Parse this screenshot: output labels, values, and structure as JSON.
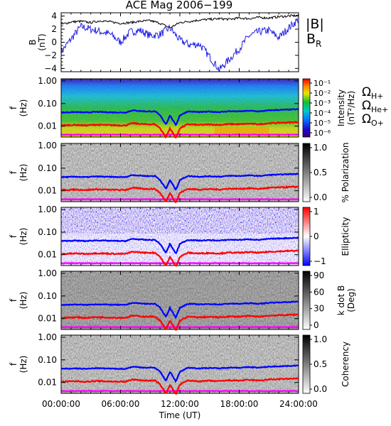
{
  "title": "ACE Mag 2006−199",
  "time_axis": {
    "label": "Time (UT)",
    "ticks": [
      "00:00:00",
      "06:00:00",
      "12:00:00",
      "18:00:00",
      "24:00:00"
    ],
    "range_hours": [
      0,
      24
    ]
  },
  "colors": {
    "B_total": "#000000",
    "B_R": "#1e1ee6",
    "omega_h": "#0000ff",
    "omega_he": "#ff0000",
    "omega_o": "#ff00ff"
  },
  "chart_data": [
    {
      "type": "line",
      "panel": "magnetic-field",
      "ylabel_line1": "B",
      "ylabel_line2": "(nT)",
      "ylim": [
        -4.5,
        4.5
      ],
      "yticks": [
        "4",
        "2",
        "0",
        "−2",
        "−4"
      ],
      "ytick_values": [
        4,
        2,
        0,
        -2,
        -4
      ],
      "x": [
        0,
        1,
        2,
        3,
        4,
        5,
        6,
        7,
        8,
        9,
        10,
        11,
        12,
        13,
        14,
        15,
        16,
        17,
        18,
        19,
        20,
        21,
        22,
        23,
        24
      ],
      "series": [
        {
          "name": "|B|",
          "values": [
            2.7,
            3.1,
            3.2,
            3.0,
            3.3,
            3.1,
            2.9,
            3.0,
            3.2,
            3.3,
            2.9,
            2.2,
            3.0,
            3.2,
            3.4,
            3.5,
            3.6,
            3.5,
            3.7,
            3.6,
            3.8,
            3.7,
            3.9,
            4.0,
            4.1
          ]
        },
        {
          "name": "B_R",
          "values": [
            -1.5,
            0.5,
            2.4,
            2.0,
            1.6,
            1.2,
            0.0,
            1.6,
            1.8,
            1.0,
            1.2,
            2.2,
            0.3,
            -0.4,
            -0.3,
            -2.2,
            -4.2,
            -2.6,
            -1.0,
            1.0,
            1.6,
            1.8,
            0.7,
            2.2,
            3.5
          ]
        }
      ],
      "legend": [
        "|B|",
        "B",
        "R"
      ]
    },
    {
      "type": "heatmap",
      "panel": "intensity",
      "ylabel_line1": "f",
      "ylabel_line2": "(Hz)",
      "yticks": [
        "1.00",
        "0.10",
        "0.01"
      ],
      "colorbar": {
        "ticks": [
          "10⁻¹",
          "10⁻²",
          "10⁻³",
          "10⁻⁴",
          "10⁻⁵",
          "10⁻⁶"
        ],
        "label_line1": "Intensity",
        "label_line2": "(nT²/Hz)"
      },
      "legend": [
        "Ω",
        "H+",
        "Ω",
        "He+",
        "Ω",
        "O+"
      ]
    },
    {
      "type": "heatmap",
      "panel": "polarization",
      "ylabel_line1": "f",
      "ylabel_line2": "(Hz)",
      "yticks": [
        "1.00",
        "0.10",
        "0.01"
      ],
      "colorbar": {
        "ticks": [
          "1.0",
          "0.5",
          "0.0"
        ],
        "label_line1": "% Polarization",
        "label_line2": ""
      }
    },
    {
      "type": "heatmap",
      "panel": "ellipticity",
      "ylabel_line1": "f",
      "ylabel_line2": "(Hz)",
      "yticks": [
        "1.00",
        "0.10",
        "0.01"
      ],
      "colorbar": {
        "ticks": [
          "1",
          "0",
          "−1"
        ],
        "label_line1": "Ellipticity",
        "label_line2": ""
      }
    },
    {
      "type": "heatmap",
      "panel": "k-dot-b",
      "ylabel_line1": "f",
      "ylabel_line2": "(Hz)",
      "yticks": [
        "1.00",
        "0.10",
        "0.01"
      ],
      "colorbar": {
        "ticks": [
          "90",
          "60",
          "30",
          "0"
        ],
        "label_line1": "k dot B",
        "label_line2": "(Deg)"
      }
    },
    {
      "type": "heatmap",
      "panel": "coherency",
      "ylabel_line1": "f",
      "ylabel_line2": "(Hz)",
      "yticks": [
        "1.00",
        "0.10",
        "0.01"
      ],
      "colorbar": {
        "ticks": [
          "1.0",
          "0.5",
          "0.0"
        ],
        "label_line1": "Coherency",
        "label_line2": ""
      }
    }
  ]
}
